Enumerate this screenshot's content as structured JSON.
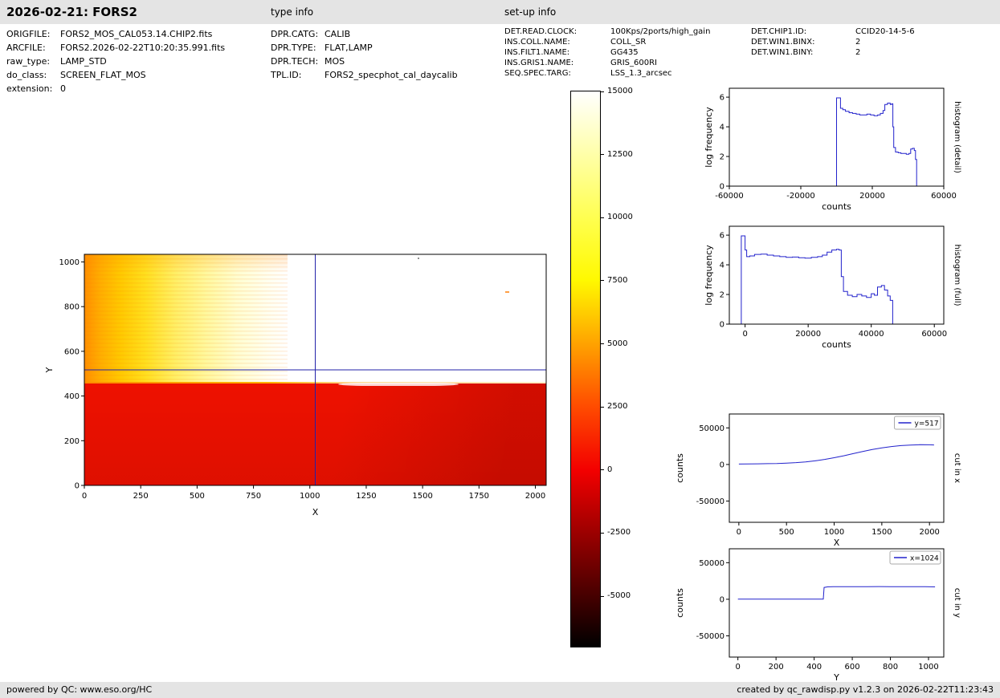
{
  "header": {
    "title": "2026-02-21: FORS2",
    "type_info_heading": "type info",
    "setup_info_heading": "set-up info"
  },
  "info": {
    "file_block": [
      {
        "label": "ORIGFILE:",
        "value": "FORS2_MOS_CAL053.14.CHIP2.fits"
      },
      {
        "label": "ARCFILE:",
        "value": "FORS2.2026-02-22T10:20:35.991.fits"
      },
      {
        "label": "raw_type:",
        "value": "LAMP_STD"
      },
      {
        "label": "do_class:",
        "value": "SCREEN_FLAT_MOS"
      },
      {
        "label": "extension:",
        "value": "0"
      }
    ],
    "type_block": [
      {
        "label": "DPR.CATG:",
        "value": "CALIB"
      },
      {
        "label": "DPR.TYPE:",
        "value": "FLAT,LAMP"
      },
      {
        "label": "DPR.TECH:",
        "value": "MOS"
      },
      {
        "label": "TPL.ID:",
        "value": "FORS2_specphot_cal_daycalib"
      }
    ],
    "setup_block": [
      {
        "label": "DET.READ.CLOCK:",
        "value": "100Kps/2ports/high_gain"
      },
      {
        "label": "INS.COLL.NAME:",
        "value": "COLL_SR"
      },
      {
        "label": "INS.FILT1.NAME:",
        "value": "GG435"
      },
      {
        "label": "INS.GRIS1.NAME:",
        "value": "GRIS_600RI"
      },
      {
        "label": "SEQ.SPEC.TARG:",
        "value": "LSS_1.3_arcsec"
      }
    ],
    "detector_block": [
      {
        "label": "DET.CHIP1.ID:",
        "value": "CCID20-14-5-6"
      },
      {
        "label": "DET.WIN1.BINX:",
        "value": "2"
      },
      {
        "label": "DET.WIN1.BINY:",
        "value": "2"
      }
    ]
  },
  "footer": {
    "left": "powered by QC: www.eso.org/HC",
    "right": "created by qc_rawdisp.py v1.2.3 on 2026-02-22T11:23:43"
  },
  "chart_data": [
    {
      "id": "main_image",
      "type": "heatmap",
      "xlabel": "X",
      "ylabel": "Y",
      "xlim": [
        0,
        2048
      ],
      "ylim": [
        0,
        1034
      ],
      "xticks": [
        0,
        250,
        500,
        750,
        1000,
        1250,
        1500,
        1750,
        2000
      ],
      "yticks": [
        0,
        200,
        400,
        600,
        800,
        1000
      ],
      "crosshair": {
        "x": 1024,
        "y": 517,
        "color": "#2222aa"
      },
      "regions": [
        {
          "name": "low-count background",
          "extent": "y < 455",
          "appearance": "bright red, counts near 0"
        },
        {
          "name": "illuminated flat gradient",
          "extent": "x < 900, y > 455",
          "appearance": "orange to yellow to white left-to-right"
        },
        {
          "name": "saturated region",
          "extent": "x > 900, y > 455",
          "appearance": "white, above colour scale"
        }
      ]
    },
    {
      "id": "colorbar",
      "type": "colorbar",
      "colormap": "hot",
      "vmin": -7000,
      "vmax": 15000,
      "ticks": [
        15000,
        12500,
        10000,
        7500,
        5000,
        2500,
        0,
        -2500,
        -5000
      ]
    },
    {
      "id": "histogram_detail",
      "type": "line",
      "xlabel": "counts",
      "ylabel": "log frequency",
      "right_label": "histogram (detail)",
      "xlim": [
        -60000,
        60000
      ],
      "ylim": [
        0,
        6.6
      ],
      "xticks": [
        -60000,
        -20000,
        20000,
        60000
      ],
      "yticks": [
        0,
        2,
        4,
        6
      ],
      "legend": false,
      "series": [
        {
          "name": "histogram",
          "step": true,
          "color": "#2222cc",
          "x": [
            0,
            0,
            1800,
            2200,
            3500,
            5000,
            7000,
            9000,
            11000,
            13000,
            15000,
            17000,
            19000,
            21000,
            23000,
            24500,
            26000,
            27000,
            28500,
            30000,
            30800,
            31500,
            32000,
            33000,
            34500,
            36000,
            37500,
            39000,
            40500,
            41500,
            42500,
            43500,
            44200,
            44800
          ],
          "y": [
            0,
            5.95,
            5.95,
            5.25,
            5.15,
            5.05,
            4.95,
            4.9,
            4.85,
            4.8,
            4.8,
            4.85,
            4.8,
            4.75,
            4.8,
            4.9,
            5.1,
            5.5,
            5.6,
            5.5,
            5.55,
            4.0,
            2.6,
            2.3,
            2.25,
            2.2,
            2.2,
            2.15,
            2.2,
            2.5,
            2.55,
            2.4,
            1.8,
            0
          ]
        }
      ]
    },
    {
      "id": "histogram_full",
      "type": "line",
      "xlabel": "counts",
      "ylabel": "log frequency",
      "right_label": "histogram (full)",
      "xlim": [
        -5000,
        63000
      ],
      "ylim": [
        0,
        6.6
      ],
      "xticks": [
        0,
        20000,
        40000,
        60000
      ],
      "yticks": [
        0,
        2,
        4,
        6
      ],
      "legend": false,
      "series": [
        {
          "name": "histogram",
          "step": true,
          "color": "#2222cc",
          "x": [
            -1200,
            -1200,
            -300,
            0,
            500,
            1500,
            3000,
            5000,
            7000,
            9000,
            11000,
            13000,
            15000,
            17000,
            19000,
            21000,
            23000,
            24500,
            26000,
            27500,
            29000,
            29800,
            30500,
            31200,
            32500,
            34000,
            35500,
            37000,
            38500,
            40000,
            41000,
            42000,
            43200,
            44200,
            45200,
            46000,
            46800
          ],
          "y": [
            0,
            5.95,
            5.95,
            5.0,
            4.55,
            4.6,
            4.7,
            4.72,
            4.65,
            4.6,
            4.55,
            4.5,
            4.52,
            4.48,
            4.45,
            4.5,
            4.55,
            4.65,
            4.85,
            5.0,
            5.05,
            5.0,
            3.2,
            2.2,
            1.95,
            1.85,
            2.0,
            1.9,
            1.8,
            2.05,
            1.95,
            2.5,
            2.6,
            2.3,
            1.9,
            1.6,
            0
          ]
        }
      ]
    },
    {
      "id": "cut_in_x",
      "type": "line",
      "xlabel": "X",
      "ylabel": "counts",
      "right_label": "cut in x",
      "xlim": [
        -100,
        2150
      ],
      "ylim": [
        -79000,
        69000
      ],
      "xticks": [
        0,
        500,
        1000,
        1500,
        2000
      ],
      "yticks": [
        -50000,
        0,
        50000
      ],
      "legend": true,
      "series": [
        {
          "name": "y=517",
          "step": false,
          "color": "#2222cc",
          "x": [
            0,
            100,
            200,
            300,
            400,
            500,
            600,
            700,
            800,
            900,
            1000,
            1100,
            1200,
            1300,
            1400,
            1500,
            1600,
            1700,
            1800,
            1900,
            2000,
            2048
          ],
          "y": [
            600,
            700,
            900,
            1100,
            1400,
            1900,
            2600,
            3600,
            5000,
            6900,
            9200,
            11900,
            14800,
            17700,
            20400,
            22700,
            24500,
            25800,
            26600,
            27000,
            26900,
            26700
          ]
        }
      ]
    },
    {
      "id": "cut_in_y",
      "type": "line",
      "xlabel": "Y",
      "ylabel": "counts",
      "right_label": "cut in y",
      "xlim": [
        -45,
        1080
      ],
      "ylim": [
        -79000,
        69000
      ],
      "xticks": [
        0,
        200,
        400,
        600,
        800,
        1000
      ],
      "yticks": [
        -50000,
        0,
        50000
      ],
      "legend": true,
      "series": [
        {
          "name": "x=1024",
          "step": false,
          "color": "#2222cc",
          "x": [
            0,
            60,
            120,
            180,
            240,
            300,
            360,
            420,
            448,
            452,
            470,
            500,
            560,
            620,
            680,
            740,
            800,
            860,
            920,
            980,
            1034
          ],
          "y": [
            250,
            220,
            260,
            230,
            250,
            240,
            260,
            250,
            300,
            16200,
            16900,
            17100,
            17200,
            17250,
            17300,
            17350,
            17300,
            17250,
            17200,
            17100,
            16900
          ]
        }
      ]
    }
  ]
}
